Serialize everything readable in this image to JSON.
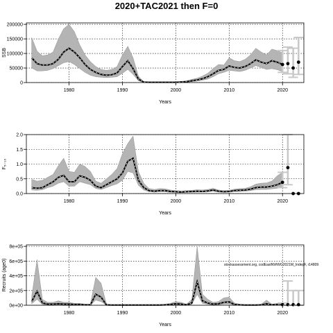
{
  "title": "2020+TAC2021 then F=0",
  "chart_data": [
    {
      "type": "line",
      "ylabel": "SSB",
      "xlabel": "Years",
      "xlim": [
        1972,
        2024
      ],
      "ylim": [
        0,
        205000
      ],
      "xticks": [
        1980,
        1990,
        2000,
        2010,
        2020
      ],
      "xtick_labels": [
        "1980",
        "1990",
        "2000",
        "2010",
        "2020"
      ],
      "yticks": [
        0,
        50000,
        100000,
        150000,
        200000
      ],
      "ytick_labels": [
        "0",
        "50000",
        "100000",
        "150000",
        "200000"
      ],
      "grid": true,
      "x": [
        1973,
        1974,
        1975,
        1976,
        1977,
        1978,
        1979,
        1980,
        1981,
        1982,
        1983,
        1984,
        1985,
        1986,
        1987,
        1988,
        1989,
        1990,
        1991,
        1992,
        1993,
        1994,
        1995,
        1996,
        1997,
        1998,
        1999,
        2000,
        2001,
        2002,
        2003,
        2004,
        2005,
        2006,
        2007,
        2008,
        2009,
        2010,
        2011,
        2012,
        2013,
        2014,
        2015,
        2016,
        2017,
        2018,
        2019,
        2020
      ],
      "series": [
        {
          "role": "estimate",
          "values": [
            85000,
            65000,
            60000,
            60000,
            65000,
            80000,
            105000,
            118000,
            105000,
            85000,
            62000,
            45000,
            35000,
            28000,
            25000,
            27000,
            33000,
            55000,
            75000,
            48000,
            12000,
            1500,
            1000,
            1000,
            1000,
            1000,
            1000,
            1000,
            2000,
            3000,
            6000,
            9000,
            13000,
            20000,
            30000,
            42000,
            45000,
            57000,
            52000,
            50000,
            55000,
            65000,
            78000,
            70000,
            65000,
            75000,
            70000,
            62000
          ]
        },
        {
          "role": "lower",
          "values": [
            50000,
            40000,
            40000,
            42000,
            48000,
            58000,
            68000,
            72000,
            62000,
            48000,
            35000,
            25000,
            20000,
            18000,
            17000,
            18000,
            20000,
            32000,
            45000,
            28000,
            6000,
            500,
            300,
            300,
            300,
            300,
            300,
            300,
            700,
            1200,
            3000,
            5000,
            8000,
            12000,
            20000,
            30000,
            35000,
            42000,
            40000,
            38000,
            42000,
            50000,
            58000,
            52000,
            45000,
            48000,
            44000,
            38000
          ]
        },
        {
          "role": "upper",
          "values": [
            155000,
            108000,
            92000,
            95000,
            105000,
            150000,
            185000,
            200000,
            175000,
            130000,
            95000,
            72000,
            55000,
            45000,
            42000,
            45000,
            55000,
            95000,
            125000,
            85000,
            22000,
            3000,
            2000,
            2000,
            2000,
            2000,
            2000,
            2000,
            4000,
            6000,
            11000,
            15000,
            22000,
            32000,
            48000,
            62000,
            60000,
            85000,
            75000,
            72000,
            80000,
            95000,
            118000,
            105000,
            95000,
            115000,
            110000,
            102000
          ]
        }
      ],
      "projection": [
        {
          "x": 2020,
          "value": 62000,
          "lower": 35000,
          "upper": 110000
        },
        {
          "x": 2021,
          "value": 65000,
          "lower": 30000,
          "upper": 122000
        },
        {
          "x": 2022,
          "value": 50000,
          "lower": 18000,
          "upper": 118000
        },
        {
          "x": 2023,
          "value": 70000,
          "lower": 28000,
          "upper": 155000
        }
      ]
    },
    {
      "type": "line",
      "ylabel": "F₅₋₁₀",
      "xlabel": "Years",
      "xlim": [
        1972,
        2024
      ],
      "ylim": [
        0,
        2.0
      ],
      "xticks": [
        1980,
        1990,
        2000,
        2010,
        2020
      ],
      "xtick_labels": [
        "1980",
        "1990",
        "2000",
        "2010",
        "2020"
      ],
      "yticks": [
        0,
        0.5,
        1.0,
        1.5,
        2.0
      ],
      "ytick_labels": [
        "0.0",
        "0.5",
        "1.0",
        "1.5",
        "2.0"
      ],
      "grid": true,
      "x": [
        1973,
        1974,
        1975,
        1976,
        1977,
        1978,
        1979,
        1980,
        1981,
        1982,
        1983,
        1984,
        1985,
        1986,
        1987,
        1988,
        1989,
        1990,
        1991,
        1992,
        1993,
        1994,
        1995,
        1996,
        1997,
        1998,
        1999,
        2000,
        2001,
        2002,
        2003,
        2004,
        2005,
        2006,
        2007,
        2008,
        2009,
        2010,
        2011,
        2012,
        2013,
        2014,
        2015,
        2016,
        2017,
        2018,
        2019,
        2020
      ],
      "series": [
        {
          "role": "estimate",
          "values": [
            0.2,
            0.18,
            0.2,
            0.3,
            0.4,
            0.55,
            0.62,
            0.4,
            0.4,
            0.6,
            0.55,
            0.45,
            0.25,
            0.2,
            0.3,
            0.4,
            0.5,
            0.7,
            1.1,
            1.2,
            0.45,
            0.2,
            0.1,
            0.08,
            0.1,
            0.1,
            0.07,
            0.06,
            0.05,
            0.06,
            0.07,
            0.08,
            0.07,
            0.09,
            0.12,
            0.08,
            0.06,
            0.07,
            0.1,
            0.11,
            0.12,
            0.15,
            0.2,
            0.22,
            0.22,
            0.25,
            0.3,
            0.38
          ]
        },
        {
          "role": "lower",
          "values": [
            0.12,
            0.11,
            0.13,
            0.2,
            0.25,
            0.35,
            0.4,
            0.25,
            0.25,
            0.4,
            0.35,
            0.3,
            0.17,
            0.14,
            0.2,
            0.27,
            0.33,
            0.45,
            0.75,
            0.7,
            0.28,
            0.12,
            0.06,
            0.05,
            0.06,
            0.06,
            0.04,
            0.04,
            0.03,
            0.04,
            0.04,
            0.05,
            0.05,
            0.06,
            0.08,
            0.05,
            0.04,
            0.05,
            0.07,
            0.07,
            0.08,
            0.1,
            0.13,
            0.14,
            0.14,
            0.16,
            0.18,
            0.2
          ]
        },
        {
          "role": "upper",
          "values": [
            0.48,
            0.42,
            0.45,
            0.55,
            0.65,
            0.95,
            1.2,
            0.75,
            0.72,
            1.0,
            0.92,
            0.75,
            0.42,
            0.35,
            0.5,
            0.65,
            0.85,
            1.35,
            1.7,
            1.95,
            0.75,
            0.35,
            0.17,
            0.14,
            0.17,
            0.16,
            0.12,
            0.1,
            0.09,
            0.1,
            0.11,
            0.13,
            0.12,
            0.14,
            0.18,
            0.12,
            0.1,
            0.11,
            0.15,
            0.17,
            0.18,
            0.23,
            0.32,
            0.35,
            0.36,
            0.42,
            0.6,
            0.72
          ]
        }
      ],
      "projection": [
        {
          "x": 2020,
          "value": 0.38,
          "lower": 0.2,
          "upper": 0.72
        },
        {
          "x": 2021,
          "value": 0.88,
          "lower": 0.3,
          "upper": 2.05
        },
        {
          "x": 2022,
          "value": 0.0,
          "lower": 0.0,
          "upper": 0.0
        },
        {
          "x": 2023,
          "value": 0.0,
          "lower": 0.0,
          "upper": 0.0
        }
      ]
    },
    {
      "type": "line",
      "ylabel": "Recruits (age0)",
      "xlabel": "Years",
      "xlim": [
        1972,
        2024
      ],
      "ylim": [
        0,
        820000
      ],
      "xticks": [
        1980,
        1990,
        2000,
        2010,
        2020
      ],
      "xtick_labels": [
        "1980",
        "1990",
        "2000",
        "2010",
        "2020"
      ],
      "yticks": [
        0,
        200000,
        400000,
        600000,
        800000
      ],
      "ytick_labels": [
        "0e+00",
        "2e+05",
        "4e+05",
        "6e+05",
        "8e+05"
      ],
      "grid": true,
      "annotation": "stockassessment.org, codEastNWWG2021M_IndepF, r14809",
      "x": [
        1973,
        1974,
        1975,
        1976,
        1977,
        1978,
        1979,
        1980,
        1981,
        1982,
        1983,
        1984,
        1985,
        1986,
        1987,
        1988,
        1989,
        1990,
        1991,
        1992,
        1993,
        1994,
        1995,
        1996,
        1997,
        1998,
        1999,
        2000,
        2001,
        2002,
        2003,
        2004,
        2005,
        2006,
        2007,
        2008,
        2009,
        2010,
        2011,
        2012,
        2013,
        2014,
        2015,
        2016,
        2017,
        2018,
        2019,
        2020
      ],
      "series": [
        {
          "role": "estimate",
          "values": [
            50000,
            190000,
            30000,
            15000,
            15000,
            20000,
            15000,
            15000,
            10000,
            10000,
            5000,
            5000,
            150000,
            110000,
            5000,
            3000,
            3000,
            3000,
            3000,
            3000,
            3000,
            3000,
            3000,
            3000,
            3000,
            5000,
            10000,
            20000,
            15000,
            5000,
            30000,
            320000,
            60000,
            30000,
            15000,
            20000,
            40000,
            45000,
            10000,
            5000,
            3000,
            3000,
            3000,
            5000,
            20000,
            5000,
            10000,
            8000
          ]
        },
        {
          "role": "lower",
          "values": [
            20000,
            80000,
            10000,
            5000,
            5000,
            8000,
            5000,
            5000,
            3000,
            3000,
            1000,
            1000,
            70000,
            50000,
            1000,
            500,
            500,
            500,
            500,
            500,
            500,
            500,
            500,
            500,
            500,
            1000,
            3000,
            8000,
            5000,
            1000,
            12000,
            150000,
            25000,
            12000,
            5000,
            8000,
            15000,
            18000,
            3000,
            1000,
            500,
            500,
            500,
            1000,
            8000,
            1000,
            3000,
            1000
          ]
        },
        {
          "role": "upper",
          "values": [
            120000,
            620000,
            80000,
            40000,
            40000,
            60000,
            40000,
            40000,
            25000,
            25000,
            15000,
            15000,
            380000,
            300000,
            15000,
            10000,
            10000,
            10000,
            10000,
            10000,
            10000,
            10000,
            10000,
            10000,
            10000,
            15000,
            25000,
            50000,
            40000,
            15000,
            80000,
            800000,
            150000,
            80000,
            40000,
            50000,
            100000,
            110000,
            30000,
            15000,
            10000,
            10000,
            10000,
            15000,
            70000,
            15000,
            25000,
            30000
          ]
        }
      ],
      "projection": [
        {
          "x": 2020,
          "value": 8000,
          "lower": 1000,
          "upper": 30000
        },
        {
          "x": 2021,
          "value": 8000,
          "lower": 0,
          "upper": 330000
        },
        {
          "x": 2022,
          "value": 8000,
          "lower": 0,
          "upper": 200000
        },
        {
          "x": 2023,
          "value": 8000,
          "lower": 0,
          "upper": 200000
        }
      ]
    }
  ]
}
